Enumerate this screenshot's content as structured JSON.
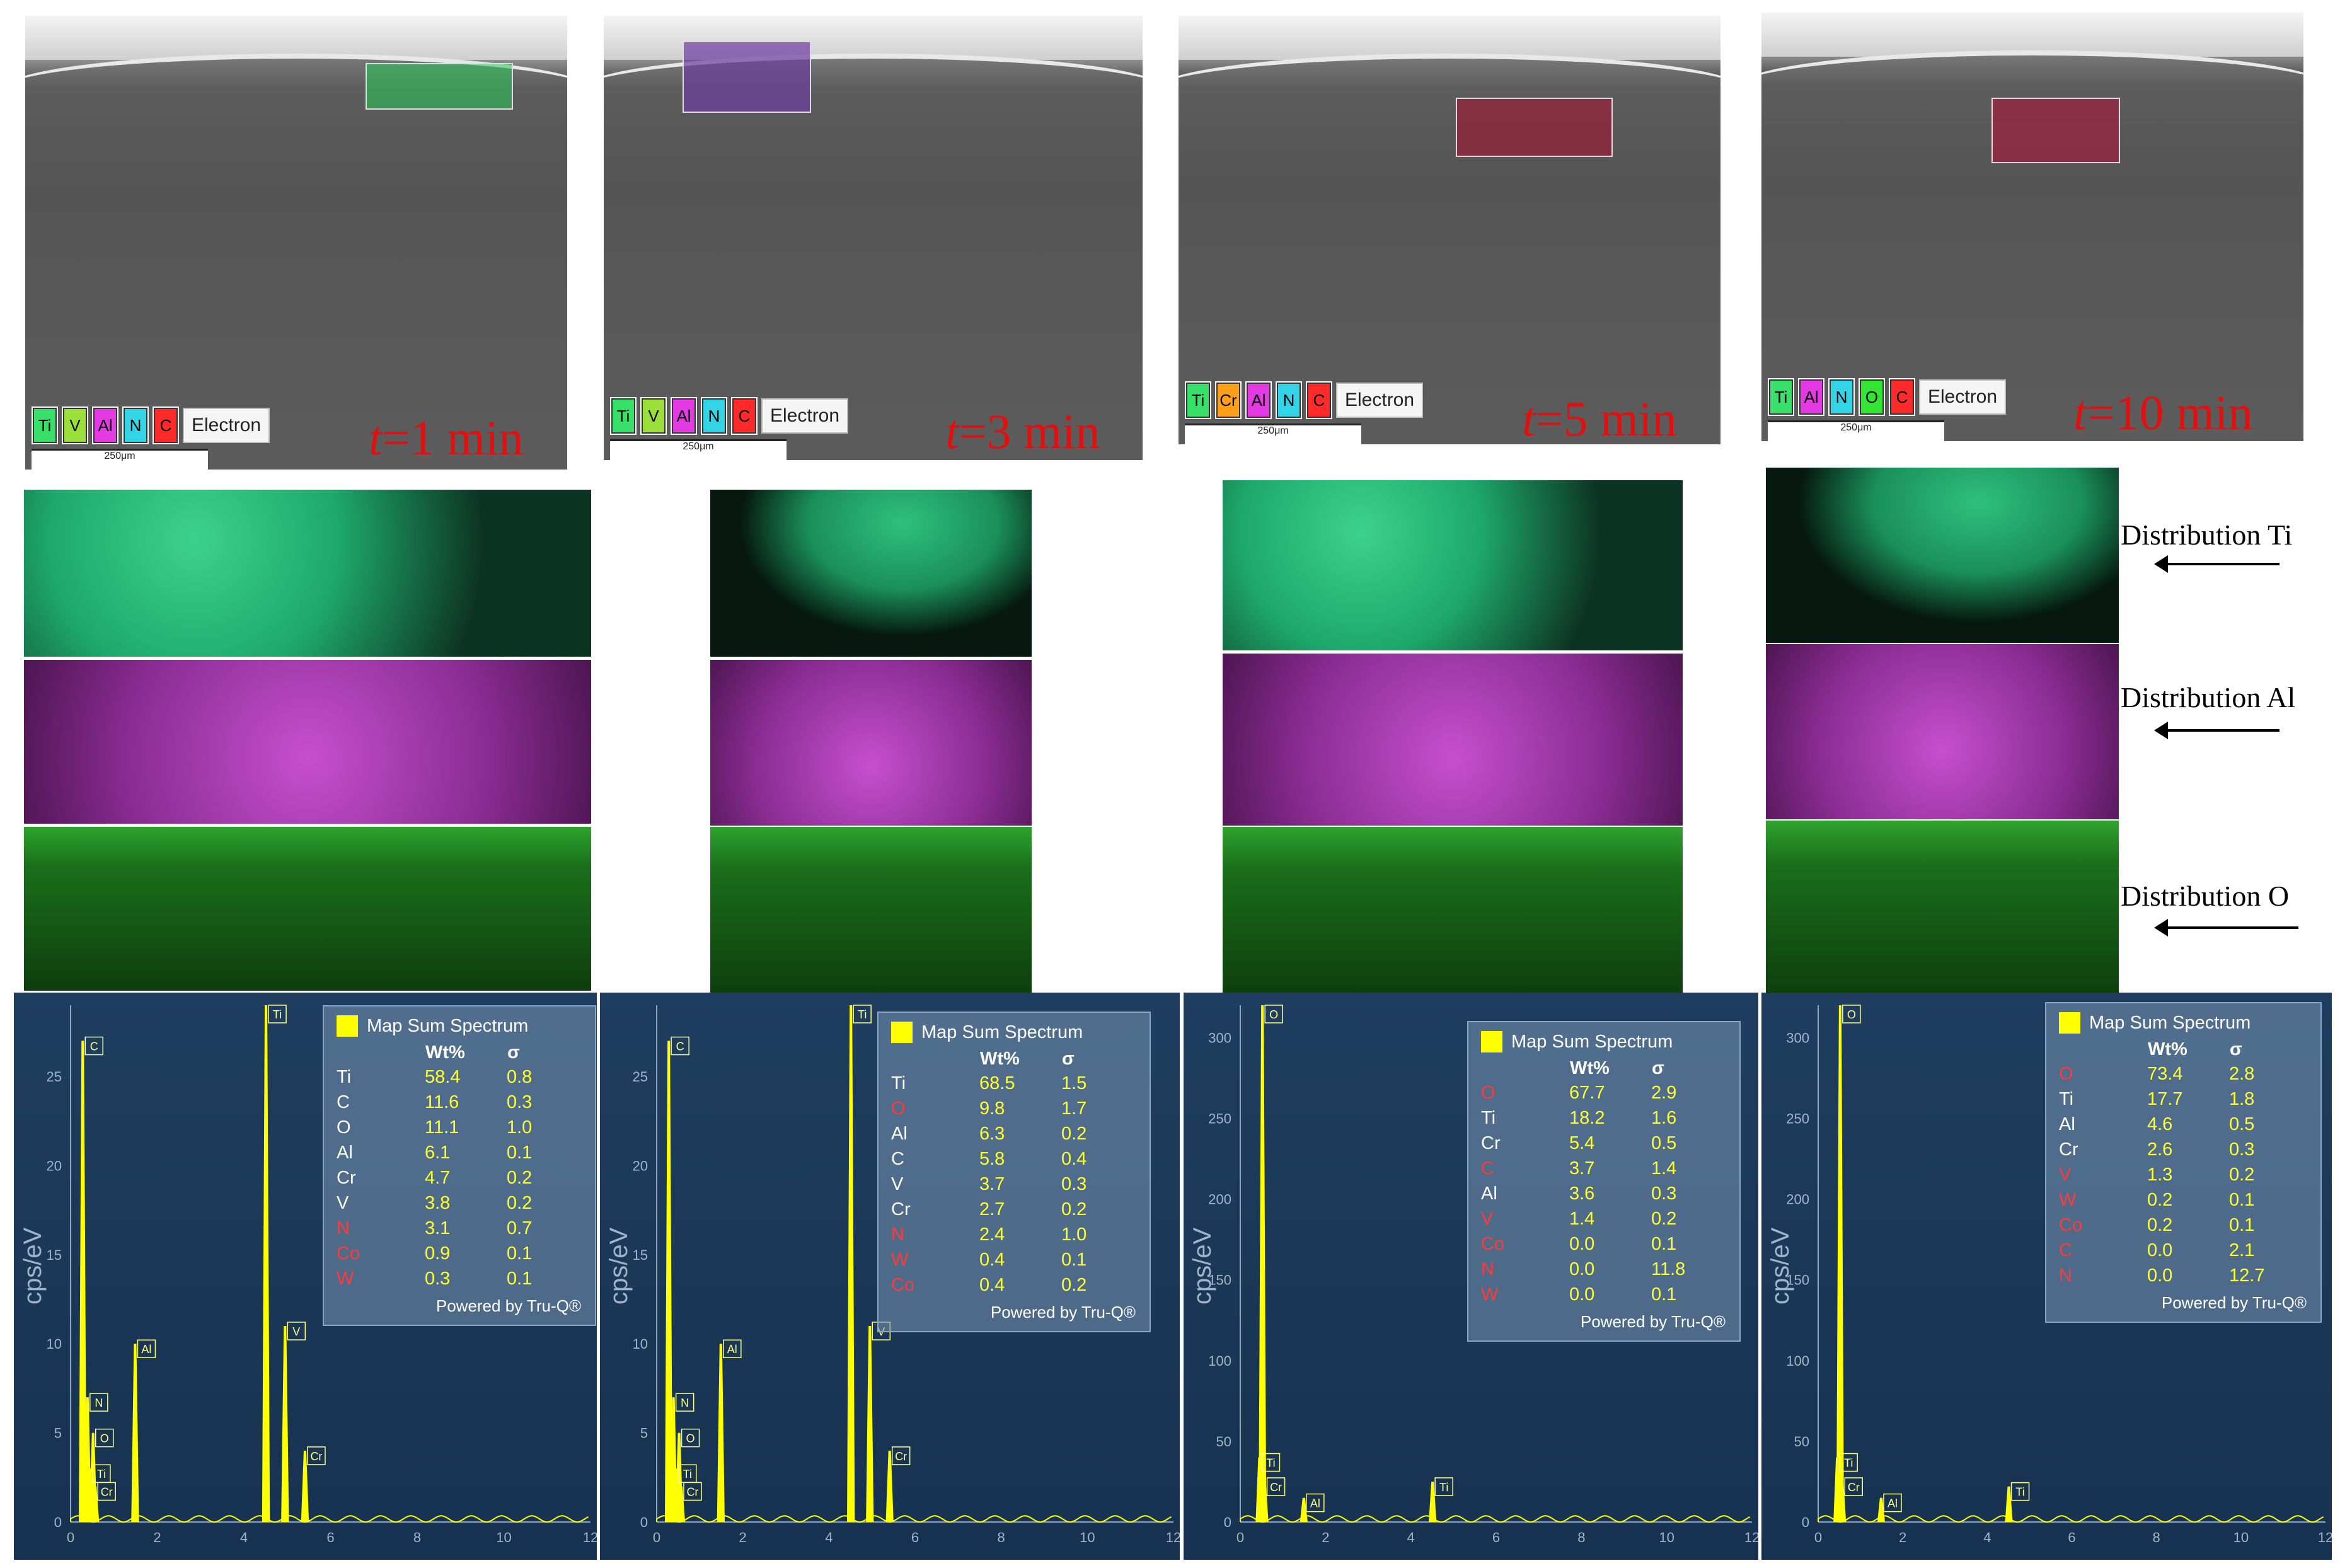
{
  "legend_electron": "Electron",
  "scale_bar": "250μm",
  "time_prefix": "t",
  "panels": [
    {
      "time": "=1 min",
      "legend": [
        "Ti",
        "V",
        "Al",
        "N",
        "C"
      ],
      "legend_colors": [
        "#38e06a",
        "#9be03a",
        "#e33ae3",
        "#33d4e6",
        "#ff2a2a"
      ]
    },
    {
      "time": "=3 min",
      "legend": [
        "Ti",
        "V",
        "Al",
        "N",
        "C"
      ],
      "legend_colors": [
        "#38e06a",
        "#9be03a",
        "#e33ae3",
        "#33d4e6",
        "#ff2a2a"
      ]
    },
    {
      "time": "=5 min",
      "legend": [
        "Ti",
        "Cr",
        "Al",
        "N",
        "C"
      ],
      "legend_colors": [
        "#38e06a",
        "#ff9f1a",
        "#e33ae3",
        "#33d4e6",
        "#ff2a2a"
      ]
    },
    {
      "time": "=10 min",
      "legend": [
        "Ti",
        "Al",
        "N",
        "O",
        "C"
      ],
      "legend_colors": [
        "#38e06a",
        "#e33ae3",
        "#33d4e6",
        "#33e633",
        "#ff2a2a"
      ]
    }
  ],
  "distribution_labels": [
    "Distribution  Ti",
    "Distribution  Al",
    "Distribution  O"
  ],
  "spectrum": {
    "title": "Map Sum Spectrum",
    "col_wt": "Wt%",
    "col_sigma": "σ",
    "footer": "Powered by Tru-Q®",
    "ylabel": "cps/eV"
  },
  "chart_data": [
    {
      "type": "table",
      "title": "Map Sum Spectrum",
      "rows": [
        {
          "el": "Ti",
          "wt": "58.4",
          "s": "0.8",
          "red": false
        },
        {
          "el": "C",
          "wt": "11.6",
          "s": "0.3",
          "red": false
        },
        {
          "el": "O",
          "wt": "11.1",
          "s": "1.0",
          "red": false
        },
        {
          "el": "Al",
          "wt": "6.1",
          "s": "0.1",
          "red": false
        },
        {
          "el": "Cr",
          "wt": "4.7",
          "s": "0.2",
          "red": false
        },
        {
          "el": "V",
          "wt": "3.8",
          "s": "0.2",
          "red": false
        },
        {
          "el": "N",
          "wt": "3.1",
          "s": "0.7",
          "red": true
        },
        {
          "el": "Co",
          "wt": "0.9",
          "s": "0.1",
          "red": true
        },
        {
          "el": "W",
          "wt": "0.3",
          "s": "0.1",
          "red": true
        }
      ],
      "yticks": [
        "0",
        "5",
        "10",
        "15",
        "20",
        "25"
      ],
      "xticks": [
        "0",
        "2",
        "4",
        "6",
        "8",
        "10",
        "12"
      ],
      "ymax": 29,
      "peaks": [
        {
          "x": 0.28,
          "y": 27,
          "l": "C"
        },
        {
          "x": 0.39,
          "y": 7,
          "l": "N"
        },
        {
          "x": 0.52,
          "y": 5,
          "l": "O"
        },
        {
          "x": 0.45,
          "y": 3,
          "l": "Ti"
        },
        {
          "x": 0.57,
          "y": 2,
          "l": "Cr"
        },
        {
          "x": 1.49,
          "y": 10,
          "l": "Al"
        },
        {
          "x": 4.51,
          "y": 29,
          "l": "Ti"
        },
        {
          "x": 4.95,
          "y": 11,
          "l": "V"
        },
        {
          "x": 5.41,
          "y": 4,
          "l": "Cr"
        }
      ]
    },
    {
      "type": "table",
      "title": "Map Sum Spectrum",
      "rows": [
        {
          "el": "Ti",
          "wt": "68.5",
          "s": "1.5",
          "red": false
        },
        {
          "el": "O",
          "wt": "9.8",
          "s": "1.7",
          "red": true
        },
        {
          "el": "Al",
          "wt": "6.3",
          "s": "0.2",
          "red": false
        },
        {
          "el": "C",
          "wt": "5.8",
          "s": "0.4",
          "red": false
        },
        {
          "el": "V",
          "wt": "3.7",
          "s": "0.3",
          "red": false
        },
        {
          "el": "Cr",
          "wt": "2.7",
          "s": "0.2",
          "red": false
        },
        {
          "el": "N",
          "wt": "2.4",
          "s": "1.0",
          "red": true
        },
        {
          "el": "W",
          "wt": "0.4",
          "s": "0.1",
          "red": true
        },
        {
          "el": "Co",
          "wt": "0.4",
          "s": "0.2",
          "red": true
        }
      ],
      "yticks": [
        "0",
        "5",
        "10",
        "15",
        "20",
        "25"
      ],
      "xticks": [
        "0",
        "2",
        "4",
        "6",
        "8",
        "10",
        "12"
      ],
      "ymax": 29,
      "peaks": [
        {
          "x": 0.28,
          "y": 27,
          "l": "C"
        },
        {
          "x": 0.39,
          "y": 7,
          "l": "N"
        },
        {
          "x": 0.52,
          "y": 5,
          "l": "O"
        },
        {
          "x": 0.45,
          "y": 3,
          "l": "Ti"
        },
        {
          "x": 0.57,
          "y": 2,
          "l": "Cr"
        },
        {
          "x": 1.49,
          "y": 10,
          "l": "Al"
        },
        {
          "x": 4.51,
          "y": 29,
          "l": "Ti"
        },
        {
          "x": 4.95,
          "y": 11,
          "l": "V"
        },
        {
          "x": 5.41,
          "y": 4,
          "l": "Cr"
        }
      ]
    },
    {
      "type": "table",
      "title": "Map Sum Spectrum",
      "rows": [
        {
          "el": "O",
          "wt": "67.7",
          "s": "2.9",
          "red": true
        },
        {
          "el": "Ti",
          "wt": "18.2",
          "s": "1.6",
          "red": false
        },
        {
          "el": "Cr",
          "wt": "5.4",
          "s": "0.5",
          "red": false
        },
        {
          "el": "C",
          "wt": "3.7",
          "s": "1.4",
          "red": true
        },
        {
          "el": "Al",
          "wt": "3.6",
          "s": "0.3",
          "red": false
        },
        {
          "el": "V",
          "wt": "1.4",
          "s": "0.2",
          "red": true
        },
        {
          "el": "Co",
          "wt": "0.0",
          "s": "0.1",
          "red": true
        },
        {
          "el": "N",
          "wt": "0.0",
          "s": "11.8",
          "red": true
        },
        {
          "el": "W",
          "wt": "0.0",
          "s": "0.1",
          "red": true
        }
      ],
      "yticks": [
        "0",
        "50",
        "100",
        "150",
        "200",
        "250",
        "300"
      ],
      "xticks": [
        "0",
        "2",
        "4",
        "6",
        "8",
        "10",
        "12"
      ],
      "ymax": 320,
      "peaks": [
        {
          "x": 0.52,
          "y": 320,
          "l": "O"
        },
        {
          "x": 0.45,
          "y": 40,
          "l": "Ti"
        },
        {
          "x": 0.57,
          "y": 25,
          "l": "Cr"
        },
        {
          "x": 1.49,
          "y": 15,
          "l": "Al"
        },
        {
          "x": 4.51,
          "y": 25,
          "l": "Ti"
        }
      ]
    },
    {
      "type": "table",
      "title": "Map Sum Spectrum",
      "rows": [
        {
          "el": "O",
          "wt": "73.4",
          "s": "2.8",
          "red": true
        },
        {
          "el": "Ti",
          "wt": "17.7",
          "s": "1.8",
          "red": false
        },
        {
          "el": "Al",
          "wt": "4.6",
          "s": "0.5",
          "red": false
        },
        {
          "el": "Cr",
          "wt": "2.6",
          "s": "0.3",
          "red": false
        },
        {
          "el": "V",
          "wt": "1.3",
          "s": "0.2",
          "red": true
        },
        {
          "el": "W",
          "wt": "0.2",
          "s": "0.1",
          "red": true
        },
        {
          "el": "Co",
          "wt": "0.2",
          "s": "0.1",
          "red": true
        },
        {
          "el": "C",
          "wt": "0.0",
          "s": "2.1",
          "red": true
        },
        {
          "el": "N",
          "wt": "0.0",
          "s": "12.7",
          "red": true
        }
      ],
      "yticks": [
        "0",
        "50",
        "100",
        "150",
        "200",
        "250",
        "300"
      ],
      "xticks": [
        "0",
        "2",
        "4",
        "6",
        "8",
        "10",
        "12"
      ],
      "ymax": 320,
      "peaks": [
        {
          "x": 0.52,
          "y": 320,
          "l": "O"
        },
        {
          "x": 0.45,
          "y": 40,
          "l": "Ti"
        },
        {
          "x": 0.57,
          "y": 25,
          "l": "Cr"
        },
        {
          "x": 1.49,
          "y": 15,
          "l": "Al"
        },
        {
          "x": 4.51,
          "y": 22,
          "l": "Ti"
        }
      ]
    }
  ]
}
